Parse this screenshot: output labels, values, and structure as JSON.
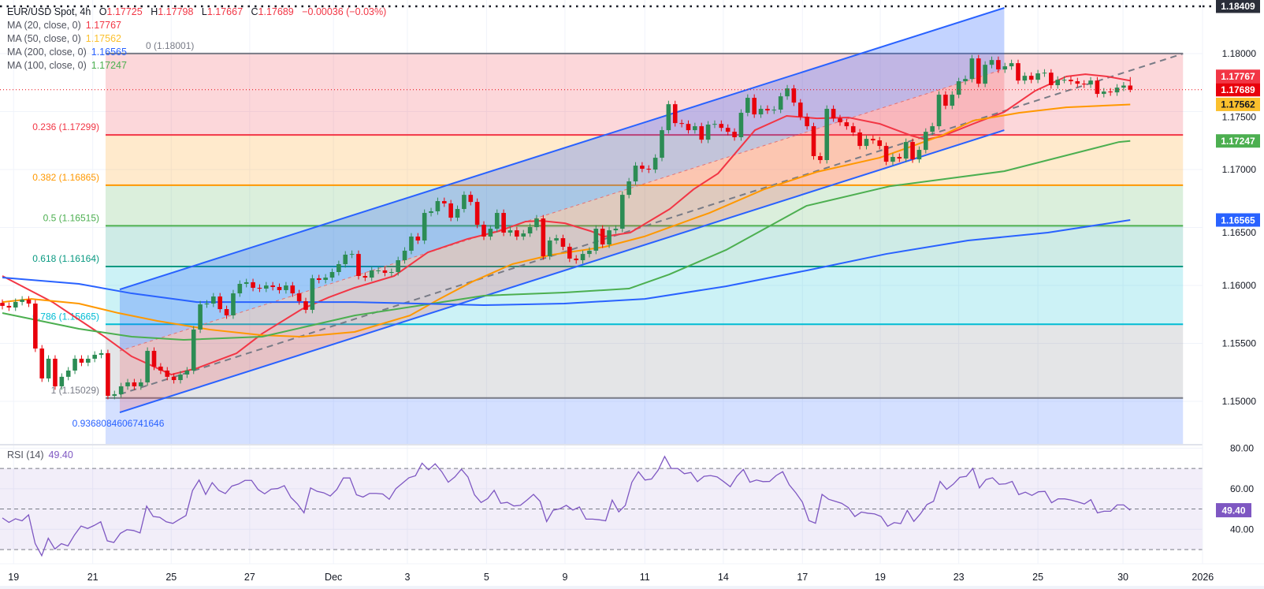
{
  "legend": {
    "symbol": "EUR/USD Spot, 4h",
    "o_label": "O",
    "o": "1.17725",
    "h_label": "H",
    "h": "1.17798",
    "l_label": "L",
    "l": "1.17667",
    "c_label": "C",
    "c": "1.17689",
    "change": "−0.00036 (−0.03%)",
    "mas": [
      {
        "label": "MA (20, close, 0)",
        "value": "1.17767",
        "color": "#f23645"
      },
      {
        "label": "MA (50, close, 0)",
        "value": "1.17562",
        "color": "#fbc02d"
      },
      {
        "label": "MA (200, close, 0)",
        "value": "1.16565",
        "color": "#2962ff"
      },
      {
        "label": "MA (100, close, 0)",
        "value": "1.17247",
        "color": "#4caf50"
      }
    ]
  },
  "chart_data": {
    "type": "candlestick",
    "symbol": "EUR/USD Spot",
    "timeframe": "4h",
    "colors": {
      "up": "#2c8c54",
      "down": "#e8000b"
    },
    "x_ticks": [
      {
        "label": "19",
        "index": 1.7
      },
      {
        "label": "21",
        "index": 13.7
      },
      {
        "label": "25",
        "index": 25.6
      },
      {
        "label": "27",
        "index": 37.5
      },
      {
        "label": "Dec",
        "index": 50.2
      },
      {
        "label": "3",
        "index": 61.4
      },
      {
        "label": "5",
        "index": 73.4
      },
      {
        "label": "9",
        "index": 85.3
      },
      {
        "label": "11",
        "index": 97.4
      },
      {
        "label": "14",
        "index": 109.3
      },
      {
        "label": "17",
        "index": 121.3
      },
      {
        "label": "19",
        "index": 133.1
      },
      {
        "label": "23",
        "index": 145.0
      },
      {
        "label": "25",
        "index": 157.0
      },
      {
        "label": "30",
        "index": 169.9
      },
      {
        "label": "2026",
        "index": 182.0
      }
    ],
    "candles": {
      "first_open": 1.1585,
      "last_high": 1.17798,
      "last_low": 1.17667,
      "close": [
        1.15824,
        1.1581,
        1.15858,
        1.15878,
        1.15844,
        1.15456,
        1.15198,
        1.15368,
        1.1513,
        1.15212,
        1.15266,
        1.15368,
        1.15334,
        1.15368,
        1.15402,
        1.15416,
        1.15048,
        1.15062,
        1.1513,
        1.15164,
        1.1513,
        1.15164,
        1.15436,
        1.153,
        1.15266,
        1.15212,
        1.15184,
        1.15232,
        1.15266,
        1.1562,
        1.15837,
        1.15844,
        1.15905,
        1.15796,
        1.15742,
        1.15932,
        1.16014,
        1.16028,
        1.1598,
        1.15973,
        1.16,
        1.15987,
        1.1596,
        1.16,
        1.15932,
        1.15864,
        1.1579,
        1.16062,
        1.16048,
        1.16068,
        1.16116,
        1.16184,
        1.16266,
        1.16272,
        1.16082,
        1.16068,
        1.1613,
        1.1613,
        1.16109,
        1.16116,
        1.16218,
        1.163,
        1.16422,
        1.16388,
        1.16626,
        1.1664,
        1.16728,
        1.16708,
        1.16585,
        1.1666,
        1.16782,
        1.16721,
        1.16524,
        1.16422,
        1.1649,
        1.16626,
        1.16456,
        1.16476,
        1.16422,
        1.16449,
        1.16504,
        1.16578,
        1.16252,
        1.16388,
        1.16408,
        1.16334,
        1.16232,
        1.16218,
        1.16272,
        1.163,
        1.1649,
        1.16354,
        1.16476,
        1.1649,
        1.16782,
        1.16898,
        1.17034,
        1.17007,
        1.17,
        1.17102,
        1.1734,
        1.17564,
        1.17401,
        1.17394,
        1.1734,
        1.17374,
        1.17258,
        1.17388,
        1.17394,
        1.1736,
        1.17326,
        1.17279,
        1.1749,
        1.17619,
        1.17476,
        1.17524,
        1.1751,
        1.17517,
        1.17632,
        1.177,
        1.17578,
        1.17456,
        1.17374,
        1.17116,
        1.17082,
        1.17524,
        1.17442,
        1.17408,
        1.17374,
        1.1732,
        1.17204,
        1.17265,
        1.17252,
        1.17204,
        1.17068,
        1.17109,
        1.17095,
        1.17238,
        1.17088,
        1.1717,
        1.17326,
        1.17374,
        1.17646,
        1.17551,
        1.17646,
        1.17762,
        1.17782,
        1.17959,
        1.17741,
        1.17904,
        1.17945,
        1.17864,
        1.17891,
        1.17918,
        1.17768,
        1.17809,
        1.17775,
        1.1783,
        1.17836,
        1.17728,
        1.17775,
        1.17775,
        1.17762,
        1.17741,
        1.17734,
        1.17768,
        1.17653,
        1.17673,
        1.17666,
        1.17707,
        1.17725,
        1.17689
      ]
    },
    "moving_averages": [
      {
        "name": "MA (20, close, 0)",
        "color": "#f23645",
        "points": [
          [
            0,
            1.16082
          ],
          [
            7.6,
            1.15857
          ],
          [
            15.5,
            1.15558
          ],
          [
            19.6,
            1.15388
          ],
          [
            25.6,
            1.15231
          ],
          [
            29.5,
            1.15286
          ],
          [
            35.5,
            1.15415
          ],
          [
            39.4,
            1.15585
          ],
          [
            45.4,
            1.15796
          ],
          [
            49.5,
            1.15898
          ],
          [
            53.4,
            1.1598
          ],
          [
            59.4,
            1.16082
          ],
          [
            64.5,
            1.16286
          ],
          [
            70.5,
            1.16401
          ],
          [
            75.3,
            1.16469
          ],
          [
            79.3,
            1.16551
          ],
          [
            81.7,
            1.16558
          ],
          [
            85.3,
            1.16537
          ],
          [
            89.2,
            1.16469
          ],
          [
            91.3,
            1.16422
          ],
          [
            95.2,
            1.16456
          ],
          [
            101.2,
            1.1666
          ],
          [
            104.8,
            1.1683
          ],
          [
            108.5,
            1.16966
          ],
          [
            114.1,
            1.1734
          ],
          [
            118.9,
            1.17463
          ],
          [
            123.5,
            1.17442
          ],
          [
            128.3,
            1.17449
          ],
          [
            133,
            1.17395
          ],
          [
            137.8,
            1.17293
          ],
          [
            140,
            1.17259
          ],
          [
            142.4,
            1.17286
          ],
          [
            147.2,
            1.17395
          ],
          [
            151.9,
            1.17497
          ],
          [
            156.6,
            1.1768
          ],
          [
            161.3,
            1.17803
          ],
          [
            164.2,
            1.17823
          ],
          [
            167.5,
            1.17803
          ],
          [
            171,
            1.17767
          ]
        ]
      },
      {
        "name": "MA (50, close, 0)",
        "color": "#ff9800",
        "points": [
          [
            0,
            1.15857
          ],
          [
            4.4,
            1.15884
          ],
          [
            11.6,
            1.15844
          ],
          [
            17.6,
            1.15762
          ],
          [
            23.5,
            1.15694
          ],
          [
            31.5,
            1.15619
          ],
          [
            39.4,
            1.15571
          ],
          [
            45.4,
            1.15558
          ],
          [
            53.4,
            1.15599
          ],
          [
            61.8,
            1.15741
          ],
          [
            66.5,
            1.15891
          ],
          [
            71.3,
            1.16034
          ],
          [
            77.3,
            1.16184
          ],
          [
            83.3,
            1.16265
          ],
          [
            91.3,
            1.16333
          ],
          [
            97.3,
            1.16422
          ],
          [
            107.2,
            1.16626
          ],
          [
            115.5,
            1.1683
          ],
          [
            123.5,
            1.1698
          ],
          [
            133,
            1.17102
          ],
          [
            142.4,
            1.17293
          ],
          [
            147.2,
            1.17422
          ],
          [
            154.2,
            1.1749
          ],
          [
            161.3,
            1.17537
          ],
          [
            171,
            1.17562
          ]
        ]
      },
      {
        "name": "MA (100, close, 0)",
        "color": "#4caf50",
        "points": [
          [
            0,
            1.15762
          ],
          [
            11.6,
            1.15626
          ],
          [
            19.6,
            1.15558
          ],
          [
            27.5,
            1.15531
          ],
          [
            39.4,
            1.15558
          ],
          [
            53.4,
            1.15741
          ],
          [
            73,
            1.15912
          ],
          [
            85.2,
            1.15939
          ],
          [
            95,
            1.15973
          ],
          [
            101.1,
            1.16095
          ],
          [
            109.7,
            1.16306
          ],
          [
            121.9,
            1.16687
          ],
          [
            134.6,
            1.16857
          ],
          [
            151.9,
            1.16986
          ],
          [
            169.3,
            1.17238
          ],
          [
            171,
            1.17247
          ]
        ]
      },
      {
        "name": "MA (200, close, 0)",
        "color": "#2962ff",
        "points": [
          [
            0,
            1.16068
          ],
          [
            11.6,
            1.16014
          ],
          [
            19.6,
            1.15932
          ],
          [
            29.5,
            1.15857
          ],
          [
            53.4,
            1.15857
          ],
          [
            73,
            1.1583
          ],
          [
            85.2,
            1.15844
          ],
          [
            97.4,
            1.15884
          ],
          [
            109.7,
            1.15993
          ],
          [
            121.9,
            1.16129
          ],
          [
            134,
            1.16272
          ],
          [
            146.4,
            1.16388
          ],
          [
            158.5,
            1.16456
          ],
          [
            171,
            1.16565
          ]
        ]
      }
    ],
    "fib_retracement": {
      "start_index": 15.65,
      "end_index": 179,
      "levels": [
        {
          "ratio": 0,
          "price": 1.18001,
          "label": "0 (1.18001)",
          "color": "#787b86"
        },
        {
          "ratio": 0.236,
          "price": 1.17299,
          "label": "0.236 (1.17299)",
          "color": "#f23645"
        },
        {
          "ratio": 0.382,
          "price": 1.16865,
          "label": "0.382 (1.16865)",
          "color": "#ff9800"
        },
        {
          "ratio": 0.5,
          "price": 1.16515,
          "label": "0.5 (1.16515)",
          "color": "#4caf50"
        },
        {
          "ratio": 0.618,
          "price": 1.16164,
          "label": "0.618 (1.16164)",
          "color": "#089981"
        },
        {
          "ratio": 0.786,
          "price": 1.15665,
          "label": "0.786 (1.15665)",
          "color": "#00bcd4"
        },
        {
          "ratio": 1,
          "price": 1.15029,
          "label": "1 (1.15029)",
          "color": "#787b86"
        }
      ],
      "below_fill_color": "#2962ff",
      "extra_label": {
        "text": "0.9368084606741646",
        "color": "#2962ff"
      }
    },
    "parallel_channel": {
      "upper": [
        [
          17.8,
          1.15966
        ],
        [
          151.9,
          1.18395
        ]
      ],
      "lower": [
        [
          17.8,
          1.14905
        ],
        [
          151.9,
          1.1734
        ]
      ],
      "upper_fill": "#2962ff",
      "lower_fill": "#f23645",
      "line_color": "#2962ff"
    },
    "trend_line": {
      "points": [
        [
          17.8,
          1.15061
        ],
        [
          179,
          1.18
        ]
      ],
      "color": "#787b86",
      "style": "dashed"
    },
    "price_axis": {
      "ylim": [
        1.14633,
        1.18463
      ],
      "ticks": [
        {
          "label": "1.18000",
          "price": 1.18
        },
        {
          "label": "1.17500",
          "price": 1.175
        },
        {
          "label": "1.17000",
          "price": 1.17
        },
        {
          "label": "1.16500",
          "price": 1.165
        },
        {
          "label": "1.16000",
          "price": 1.16
        },
        {
          "label": "1.15500",
          "price": 1.155
        },
        {
          "label": "1.15000",
          "price": 1.15
        }
      ]
    },
    "high_line": {
      "price": 1.18409,
      "color": "#131722"
    },
    "current_price_line": {
      "price": 1.17689,
      "color": "#e8000b"
    },
    "price_badges": [
      {
        "label": "1.18409",
        "price": 1.18409,
        "bg": "#2a2e39",
        "fg": "#ffffff"
      },
      {
        "label": "1.17767",
        "price": 1.17767,
        "bg": "#f23645",
        "fg": "#ffffff"
      },
      {
        "label": "1.17689",
        "price": 1.17689,
        "bg": "#e8000b",
        "fg": "#ffffff"
      },
      {
        "label": "1.17562",
        "price": 1.17562,
        "bg": "#fbc02d",
        "fg": "#131722"
      },
      {
        "label": "1.17247",
        "price": 1.17247,
        "bg": "#4caf50",
        "fg": "#ffffff"
      },
      {
        "label": "1.16565",
        "price": 1.16565,
        "bg": "#2962ff",
        "fg": "#ffffff"
      }
    ],
    "rsi": {
      "label": "RSI (14)",
      "value": "49.40",
      "color": "#7e57c2",
      "ylim": [
        23,
        81.7
      ],
      "band": [
        30,
        70
      ],
      "levels": [
        70,
        50,
        30
      ],
      "ticks": [
        {
          "label": "80.00",
          "value": 80
        },
        {
          "label": "60.00",
          "value": 60
        },
        {
          "label": "40.00",
          "value": 40
        }
      ],
      "values": [
        45.6,
        43.4,
        45.2,
        44.2,
        47.1,
        33,
        27,
        35.6,
        30.3,
        32.9,
        31.8,
        37.2,
        41.6,
        40.4,
        41.9,
        43.7,
        34.3,
        33.5,
        38,
        39.8,
        39.4,
        38.2,
        51.4,
        46.3,
        45.9,
        43.7,
        42.9,
        44.9,
        46.8,
        59.1,
        64.3,
        57.2,
        63,
        59.2,
        57.6,
        61.3,
        62.3,
        64.1,
        64.1,
        59.6,
        57.5,
        59.8,
        60.1,
        61.5,
        55.7,
        52.5,
        48.1,
        60.4,
        58.7,
        58,
        56.4,
        59.6,
        65.3,
        65.3,
        57,
        55.9,
        57.7,
        57.7,
        57.4,
        54.8,
        60,
        62.7,
        65.4,
        66.4,
        72.6,
        69.3,
        72.3,
        68.4,
        63.2,
        65.8,
        69.6,
        65.8,
        57,
        53.2,
        55.1,
        59.2,
        52.8,
        53.3,
        51.5,
        51.8,
        54.4,
        57.2,
        53.8,
        43.8,
        49.4,
        50.1,
        51.8,
        49.5,
        51,
        45,
        45,
        44.7,
        44.2,
        54.4,
        48.6,
        51.8,
        63.2,
        68.4,
        64.3,
        64.8,
        69.1,
        75.9,
        70,
        70,
        67.4,
        68,
        63.5,
        66.1,
        66.5,
        65.8,
        63.5,
        61,
        66.1,
        69.5,
        63.2,
        64.3,
        63.5,
        63.6,
        66.5,
        68.4,
        61.9,
        58,
        53.4,
        44.3,
        43,
        57.2,
        54.8,
        53.8,
        52.8,
        50.7,
        46.3,
        48.5,
        47.9,
        47.6,
        46.3,
        41.5,
        43.3,
        42.8,
        49.3,
        43.9,
        47.6,
        52.2,
        53.8,
        63.6,
        59.7,
        62.2,
        65.6,
        66.1,
        70,
        60.4,
        64.5,
        65.4,
        62.2,
        62.4,
        63.6,
        57.1,
        58.3,
        56.7,
        58.5,
        58.7,
        53.1,
        55,
        55,
        54.4,
        53.5,
        52.5,
        54.6,
        48.1,
        48.9,
        48.9,
        52,
        52,
        49.4
      ]
    }
  }
}
